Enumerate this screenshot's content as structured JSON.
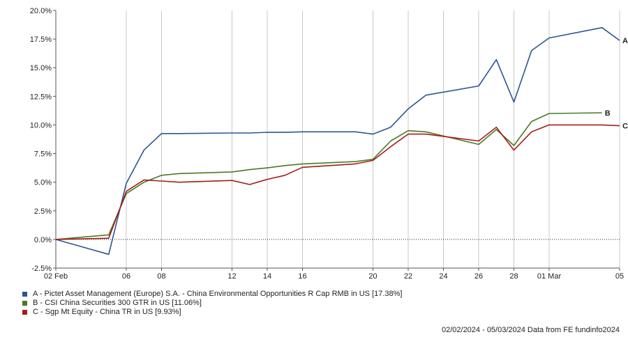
{
  "chart_data": {
    "type": "line",
    "title": "",
    "xlabel": "",
    "ylabel": "",
    "ylim": [
      -2.5,
      20.0
    ],
    "y_ticks": [
      "-2.5%",
      "0.0%",
      "2.5%",
      "5.0%",
      "7.5%",
      "10.0%",
      "12.5%",
      "15.0%",
      "17.5%",
      "20.0%"
    ],
    "y_tick_values": [
      -2.5,
      0,
      2.5,
      5,
      7.5,
      10,
      12.5,
      15,
      17.5,
      20
    ],
    "x_start": "2024-02-02",
    "x_end": "2024-03-05",
    "x_ticks": [
      {
        "date": "2024-02-02",
        "label": "02 Feb"
      },
      {
        "date": "2024-02-06",
        "label": "06"
      },
      {
        "date": "2024-02-08",
        "label": "08"
      },
      {
        "date": "2024-02-12",
        "label": "12"
      },
      {
        "date": "2024-02-14",
        "label": "14"
      },
      {
        "date": "2024-02-16",
        "label": "16"
      },
      {
        "date": "2024-02-20",
        "label": "20"
      },
      {
        "date": "2024-02-22",
        "label": "22"
      },
      {
        "date": "2024-02-24",
        "label": "24"
      },
      {
        "date": "2024-02-26",
        "label": "26"
      },
      {
        "date": "2024-02-28",
        "label": "28"
      },
      {
        "date": "2024-03-01",
        "label": "01 Mar"
      },
      {
        "date": "2024-03-05",
        "label": "05"
      }
    ],
    "grid": "vertical",
    "zero_line": "dotted",
    "series": [
      {
        "name": "A - Pictet Asset Management (Europe) S.A. - China Environmental Opportunities R Cap RMB in US [17.38%]",
        "end_label": "A",
        "color": "#2d5590",
        "points": [
          [
            "2024-02-02",
            0.0
          ],
          [
            "2024-02-05",
            -1.3
          ],
          [
            "2024-02-06",
            4.9
          ],
          [
            "2024-02-07",
            7.8
          ],
          [
            "2024-02-08",
            9.25
          ],
          [
            "2024-02-09",
            9.25
          ],
          [
            "2024-02-12",
            9.3
          ],
          [
            "2024-02-13",
            9.3
          ],
          [
            "2024-02-14",
            9.35
          ],
          [
            "2024-02-15",
            9.35
          ],
          [
            "2024-02-16",
            9.4
          ],
          [
            "2024-02-19",
            9.4
          ],
          [
            "2024-02-20",
            9.2
          ],
          [
            "2024-02-21",
            9.8
          ],
          [
            "2024-02-22",
            11.4
          ],
          [
            "2024-02-23",
            12.6
          ],
          [
            "2024-02-26",
            13.4
          ],
          [
            "2024-02-27",
            15.7
          ],
          [
            "2024-02-28",
            12.0
          ],
          [
            "2024-02-29",
            16.5
          ],
          [
            "2024-03-01",
            17.6
          ],
          [
            "2024-03-04",
            18.5
          ],
          [
            "2024-03-05",
            17.38
          ]
        ]
      },
      {
        "name": "B - CSI China Securities 300 GTR in US [11.06%]",
        "end_label": "B",
        "color": "#4a7a23",
        "points": [
          [
            "2024-02-02",
            0.0
          ],
          [
            "2024-02-05",
            0.4
          ],
          [
            "2024-02-06",
            4.0
          ],
          [
            "2024-02-07",
            5.0
          ],
          [
            "2024-02-08",
            5.6
          ],
          [
            "2024-02-09",
            5.75
          ],
          [
            "2024-02-12",
            5.9
          ],
          [
            "2024-02-13",
            6.1
          ],
          [
            "2024-02-14",
            6.25
          ],
          [
            "2024-02-15",
            6.45
          ],
          [
            "2024-02-16",
            6.6
          ],
          [
            "2024-02-19",
            6.8
          ],
          [
            "2024-02-20",
            7.0
          ],
          [
            "2024-02-21",
            8.6
          ],
          [
            "2024-02-22",
            9.5
          ],
          [
            "2024-02-23",
            9.4
          ],
          [
            "2024-02-26",
            8.3
          ],
          [
            "2024-02-27",
            9.6
          ],
          [
            "2024-02-28",
            8.2
          ],
          [
            "2024-02-29",
            10.3
          ],
          [
            "2024-03-01",
            11.0
          ],
          [
            "2024-03-04",
            11.06
          ]
        ]
      },
      {
        "name": "C - Sgp Mt Equity - China TR in US [9.93%]",
        "end_label": "C",
        "color": "#a51c1c",
        "points": [
          [
            "2024-02-02",
            0.0
          ],
          [
            "2024-02-05",
            0.1
          ],
          [
            "2024-02-06",
            4.2
          ],
          [
            "2024-02-07",
            5.2
          ],
          [
            "2024-02-08",
            5.1
          ],
          [
            "2024-02-09",
            5.0
          ],
          [
            "2024-02-12",
            5.15
          ],
          [
            "2024-02-13",
            4.8
          ],
          [
            "2024-02-14",
            5.25
          ],
          [
            "2024-02-15",
            5.6
          ],
          [
            "2024-02-16",
            6.3
          ],
          [
            "2024-02-19",
            6.6
          ],
          [
            "2024-02-20",
            6.9
          ],
          [
            "2024-02-21",
            8.1
          ],
          [
            "2024-02-22",
            9.2
          ],
          [
            "2024-02-23",
            9.2
          ],
          [
            "2024-02-26",
            8.6
          ],
          [
            "2024-02-27",
            9.8
          ],
          [
            "2024-02-28",
            7.8
          ],
          [
            "2024-02-29",
            9.4
          ],
          [
            "2024-03-01",
            10.0
          ],
          [
            "2024-03-04",
            10.0
          ],
          [
            "2024-03-05",
            9.93
          ]
        ]
      }
    ]
  },
  "footer": {
    "text": "02/02/2024 - 05/03/2024 Data from FE fundinfo2024"
  }
}
